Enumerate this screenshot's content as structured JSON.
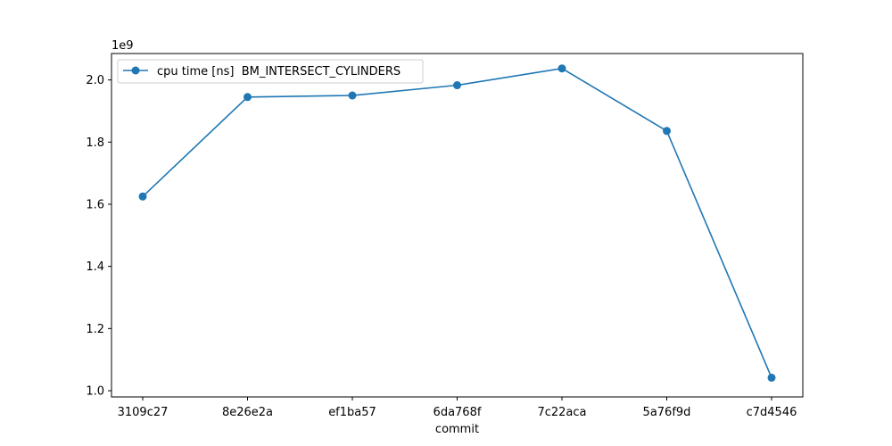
{
  "chart_data": {
    "type": "line",
    "title": "",
    "xlabel": "commit",
    "ylabel": "",
    "y_scale_label": "1e9",
    "x": [
      "3109c27",
      "8e26e2a",
      "ef1ba57",
      "6da768f",
      "7c22aca",
      "5a76f9d",
      "c7d4546"
    ],
    "series": [
      {
        "name": "cpu time [ns]  BM_INTERSECT_CYLINDERS",
        "color": "#1f77b4",
        "marker": "circle",
        "values": [
          1625000000,
          1945000000,
          1950000000,
          1983000000,
          2037000000,
          1836000000,
          1042000000
        ]
      }
    ],
    "ylim": [
      0.98,
      2.085
    ],
    "yticks": [
      1.0,
      1.2,
      1.4,
      1.6,
      1.8,
      2.0
    ],
    "ytick_labels": [
      "1.0",
      "1.2",
      "1.4",
      "1.6",
      "1.8",
      "2.0"
    ],
    "grid": false,
    "legend_position": "upper-left"
  }
}
